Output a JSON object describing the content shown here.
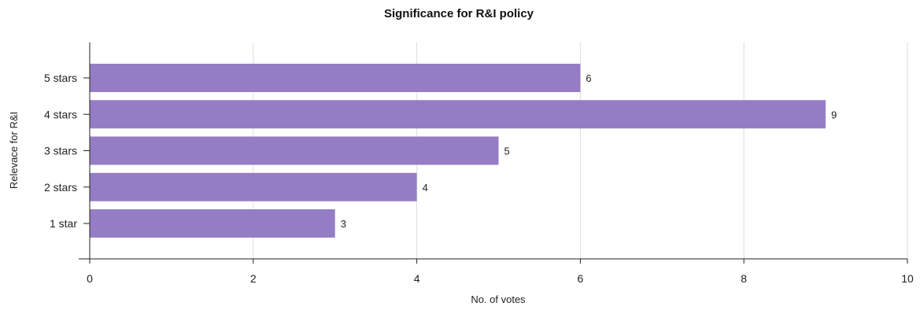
{
  "chart_data": {
    "type": "bar",
    "orientation": "horizontal",
    "title": "Significance for R&I policy",
    "xlabel": "No. of votes",
    "ylabel": "Relevace for R&I",
    "categories": [
      "5 stars",
      "4 stars",
      "3 stars",
      "2 stars",
      "1 star"
    ],
    "values": [
      6,
      9,
      5,
      4,
      3
    ],
    "data_labels": [
      "6",
      "9",
      "5",
      "4",
      "3"
    ],
    "xlim": [
      0,
      10
    ],
    "xticks": [
      0,
      2,
      4,
      6,
      8,
      10
    ],
    "xtick_labels": [
      "0",
      "2",
      "4",
      "6",
      "8",
      "10"
    ],
    "bar_color": "#957dc5",
    "grid": "vertical",
    "legend": "none"
  }
}
